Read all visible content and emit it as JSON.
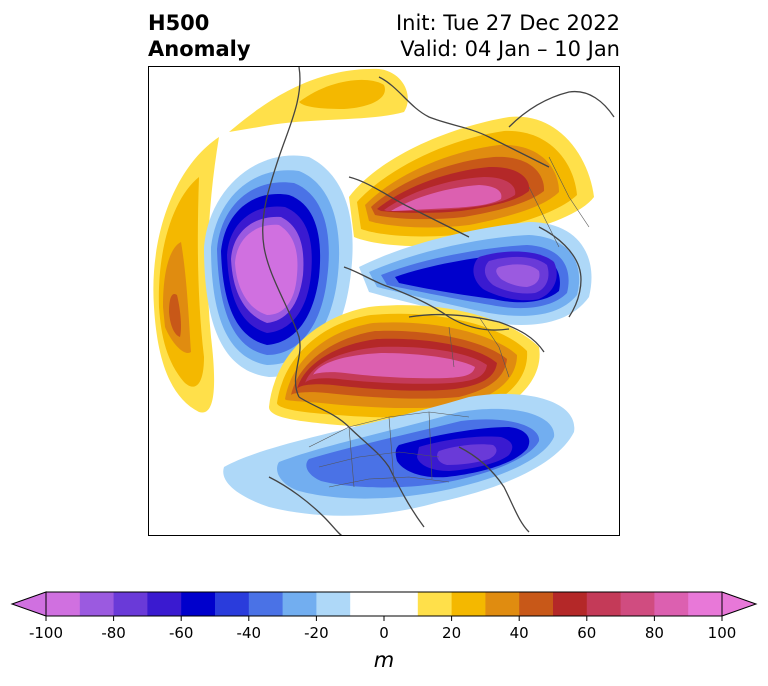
{
  "header": {
    "title_line1": "H500",
    "title_line2": "Anomaly",
    "init": "Init: Tue 27 Dec 2022",
    "valid": "Valid: 04 Jan – 10 Jan"
  },
  "colorbar": {
    "units": "m",
    "tick_labels": [
      "-100",
      "-80",
      "-60",
      "-40",
      "-20",
      "0",
      "20",
      "40",
      "60",
      "80",
      "100"
    ],
    "bins": [
      {
        "color": "#d070e0"
      },
      {
        "color": "#9b5ae0"
      },
      {
        "color": "#6a3ad8"
      },
      {
        "color": "#3a1ad0"
      },
      {
        "color": "#0000cc"
      },
      {
        "color": "#2a3cdc"
      },
      {
        "color": "#4a72e6"
      },
      {
        "color": "#72aef0"
      },
      {
        "color": "#aed8f8"
      },
      {
        "color": "#ffffff"
      },
      {
        "color": "#ffffff"
      },
      {
        "color": "#ffe04a"
      },
      {
        "color": "#f4b800"
      },
      {
        "color": "#e08c10"
      },
      {
        "color": "#c85818"
      },
      {
        "color": "#b42828"
      },
      {
        "color": "#c43a58"
      },
      {
        "color": "#d04c80"
      },
      {
        "color": "#dc60b0"
      },
      {
        "color": "#e878d8"
      }
    ],
    "under_color": "#d070e0",
    "over_color": "#e878d8"
  },
  "map": {
    "anomaly_centers": [
      {
        "name": "pacific-trough",
        "sign": "negative"
      },
      {
        "name": "canada-ridge",
        "sign": "positive"
      },
      {
        "name": "arctic-ridge",
        "sign": "positive"
      },
      {
        "name": "atlantic-trough",
        "sign": "negative"
      },
      {
        "name": "east-us-trough",
        "sign": "negative"
      },
      {
        "name": "west-pacific-ridge",
        "sign": "positive"
      }
    ]
  }
}
